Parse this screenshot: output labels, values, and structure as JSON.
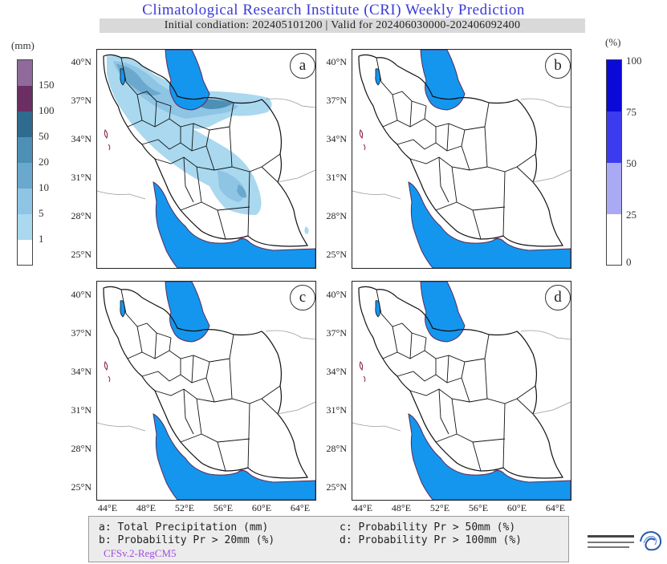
{
  "header": {
    "title": "Climatological Research Institute (CRI) Weekly Prediction",
    "subtitle": "Initial condiation: 202405101200 | Valid for 202406030000-202406092400"
  },
  "left_colorbar": {
    "unit": "(mm)",
    "ticks": [
      "150",
      "100",
      "50",
      "20",
      "10",
      "5",
      "1"
    ],
    "colors": [
      "#ffffff",
      "#a9d8ef",
      "#8ec4e4",
      "#6aa9cd",
      "#4d8fb5",
      "#2f6b8e",
      "#6b2f63",
      "#8f6a9b"
    ]
  },
  "right_colorbar": {
    "unit": "(%)",
    "ticks": [
      "100",
      "75",
      "50",
      "25",
      "0"
    ],
    "colors": [
      "#ffffff",
      "#a9a9f4",
      "#3b3bf0",
      "#0a0ad8"
    ]
  },
  "panels": [
    {
      "id": "a",
      "label": "a"
    },
    {
      "id": "b",
      "label": "b"
    },
    {
      "id": "c",
      "label": "c"
    },
    {
      "id": "d",
      "label": "d"
    }
  ],
  "axes": {
    "lat_ticks": [
      "40°N",
      "37°N",
      "34°N",
      "31°N",
      "28°N",
      "25°N"
    ],
    "lon_ticks": [
      "44°E",
      "48°E",
      "52°E",
      "56°E",
      "60°E",
      "64°E"
    ]
  },
  "legend": {
    "a": "a: Total Precipitation (mm)",
    "b": "b: Probability Pr > 20mm (%)",
    "c": "c: Probability Pr > 50mm (%)",
    "d": "d: Probability Pr > 100mm (%)",
    "credit": "CFSv.2-RegCM5"
  },
  "colors": {
    "sea": "#1496ee",
    "border": "#111111",
    "title": "#3a3ad8"
  }
}
